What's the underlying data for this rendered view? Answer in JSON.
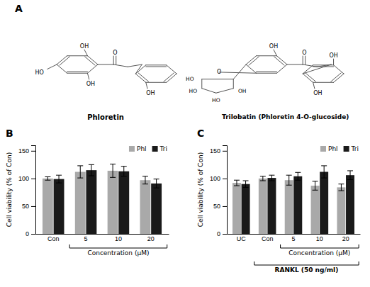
{
  "chart_data": [
    {
      "type": "structure",
      "title": "A",
      "color": "#555555",
      "annotations": [
        "O",
        "OH",
        "HO",
        "OH",
        "OH",
        "Phloretin",
        "O",
        "OH",
        "OH",
        "O",
        "HO",
        "HO",
        "HO",
        "OH",
        "OH",
        "Trilobatin (Phloretin 4-O-glucoside)"
      ]
    },
    {
      "type": "bar",
      "title": "B",
      "categories": [
        "Con",
        "5",
        "10",
        "20"
      ],
      "series": [
        {
          "name": "Phl",
          "color": "#A9A9A9",
          "values": [
            100,
            112,
            114,
            97
          ],
          "errors": [
            3,
            11,
            12,
            7
          ]
        },
        {
          "name": "Tri",
          "color": "#1a1a1a",
          "values": [
            99,
            115,
            113,
            91
          ],
          "errors": [
            7,
            10,
            9,
            8
          ]
        }
      ],
      "ylabel": "Cell viability (% of Con)",
      "ylim": [
        0,
        160
      ],
      "yticks": [
        0,
        50,
        100,
        150
      ],
      "legend": "upper right",
      "annotations": [
        {
          "text": "Concentration (μM)",
          "span": [
            "5",
            "20"
          ]
        }
      ]
    },
    {
      "type": "bar",
      "title": "C",
      "categories": [
        "UC",
        "Con",
        "5",
        "10",
        "20"
      ],
      "series": [
        {
          "name": "Phl",
          "color": "#A9A9A9",
          "values": [
            92,
            100,
            97,
            87,
            84
          ],
          "errors": [
            5,
            4,
            9,
            8,
            6
          ]
        },
        {
          "name": "Tri",
          "color": "#1a1a1a",
          "values": [
            90,
            101,
            104,
            112,
            106
          ],
          "errors": [
            6,
            5,
            7,
            11,
            8
          ]
        }
      ],
      "ylabel": "Cell viability (% of Con)",
      "ylim": [
        0,
        160
      ],
      "yticks": [
        0,
        50,
        100,
        150
      ],
      "legend": "upper right",
      "annotations": [
        {
          "text": "Concentration (μM)",
          "span": [
            "5",
            "20"
          ]
        },
        {
          "text": "RANKL (50 ng/ml)",
          "span": [
            "Con",
            "20"
          ]
        }
      ]
    }
  ]
}
